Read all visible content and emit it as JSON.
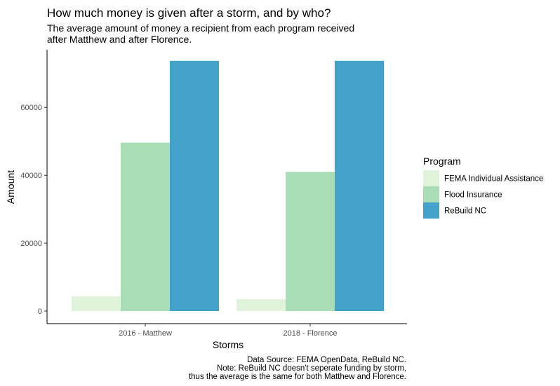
{
  "chart_data": {
    "type": "bar",
    "title": "How much money is given after a storm, and by who?",
    "subtitle": [
      "The average amount of money a recipient from each program received",
      "after Matthew and after Florence."
    ],
    "xlabel": "Storms",
    "ylabel": "Amount",
    "categories": [
      "2016 - Matthew",
      "2018 - Florence"
    ],
    "ylim": [
      0,
      75000
    ],
    "yticks": [
      0,
      20000,
      40000,
      60000
    ],
    "grid": false,
    "legend": {
      "title": "Program",
      "position": "right"
    },
    "series": [
      {
        "name": "FEMA Individual Assistance",
        "color": "#e0f3db",
        "values": [
          4300,
          3500
        ]
      },
      {
        "name": "Flood Insurance",
        "color": "#a8ddb5",
        "values": [
          49600,
          41000
        ]
      },
      {
        "name": "ReBuild NC",
        "color": "#43a2ca",
        "values": [
          73700,
          73700
        ]
      }
    ],
    "caption": [
      "Data Source: FEMA OpenData, ReBuild NC.",
      "Note: ReBuild NC doesn't seperate funding by storm,",
      "thus the average is the same for both Matthew and Florence."
    ]
  }
}
